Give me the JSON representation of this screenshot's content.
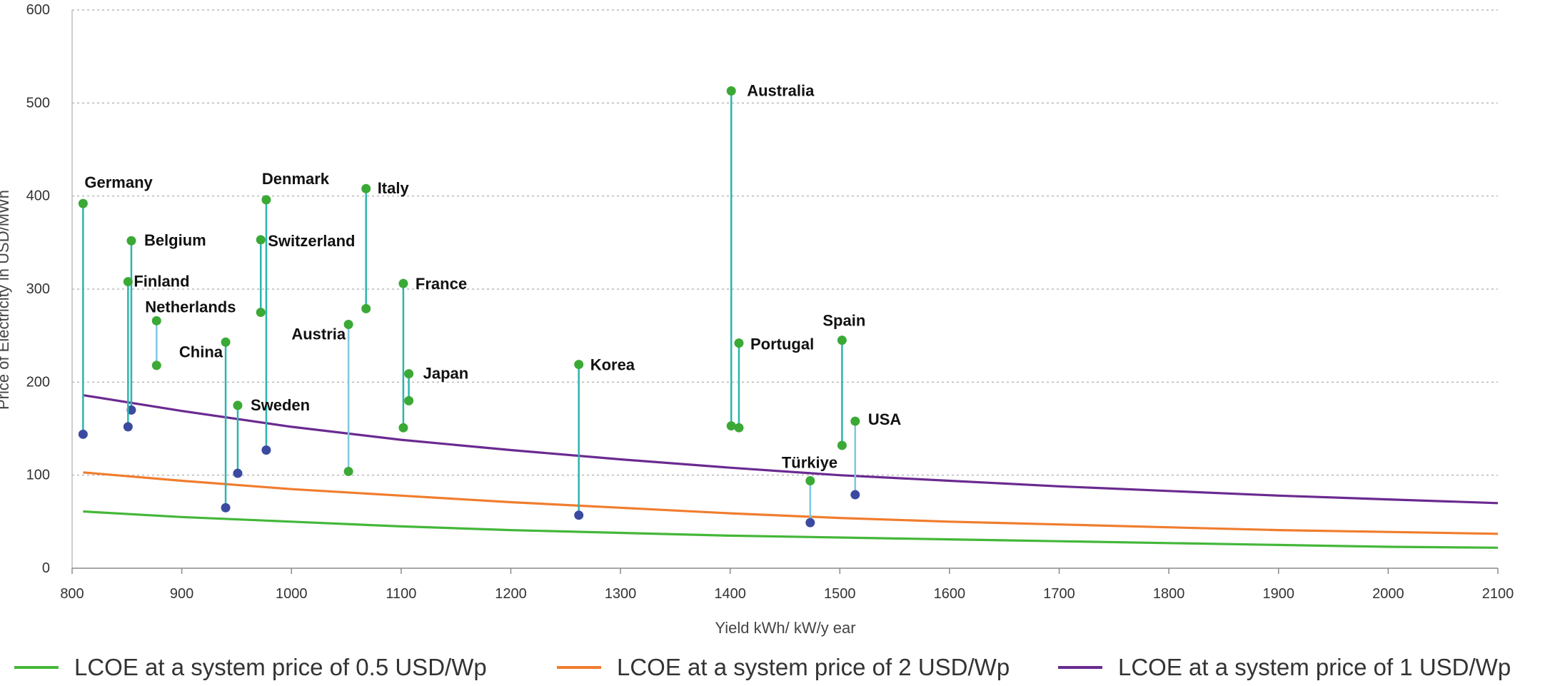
{
  "chart_data": {
    "type": "scatter",
    "title": "",
    "xlabel": "Yield kWh/ kW/y ear",
    "ylabel": "Price of Electricity in USD/MWh",
    "xlim": [
      800,
      2100
    ],
    "ylim": [
      0,
      600
    ],
    "x_ticks": [
      "800",
      "900",
      "1000",
      "1100",
      "1200",
      "1300",
      "1400",
      "1500",
      "1600",
      "1700",
      "1800",
      "1900",
      "2000",
      "2100"
    ],
    "y_ticks": [
      "0",
      "100",
      "200",
      "300",
      "400",
      "500",
      "600"
    ],
    "grid": "horizontal dashed",
    "legend_position": "bottom",
    "colors": {
      "high_point": "#3aa935",
      "low_point": "#3b4aa0",
      "range_line": "#2bb5b0",
      "range_line_light": "#7ec8e3"
    },
    "series": [
      {
        "name": "LCOE at a system price of 0.5 USD/Wp",
        "color": "#44b73a",
        "x": [
          810,
          900,
          1000,
          1100,
          1200,
          1300,
          1400,
          1500,
          1600,
          1700,
          1800,
          1900,
          2000,
          2100
        ],
        "y": [
          61,
          55,
          50,
          45,
          41,
          38,
          35,
          33,
          31,
          29,
          27,
          25,
          23,
          22
        ]
      },
      {
        "name": "LCOE at a system price of 2 USD/Wp",
        "color": "#f07d2e",
        "x": [
          810,
          900,
          1000,
          1100,
          1200,
          1300,
          1400,
          1500,
          1600,
          1700,
          1800,
          1900,
          2000,
          2100
        ],
        "y": [
          103,
          94,
          85,
          78,
          71,
          65,
          59,
          54,
          50,
          47,
          44,
          41,
          39,
          37
        ]
      },
      {
        "name": "LCOE at a system price of 1 USD/Wp",
        "color": "#6a2a90",
        "x": [
          810,
          900,
          1000,
          1100,
          1200,
          1300,
          1400,
          1500,
          1600,
          1700,
          1800,
          1900,
          2000,
          2100
        ],
        "y": [
          186,
          169,
          152,
          138,
          127,
          117,
          108,
          100,
          94,
          88,
          83,
          78,
          74,
          70
        ]
      }
    ],
    "countries": [
      {
        "name": "Germany",
        "x": 810,
        "high": 392,
        "low": 144,
        "low_color": "blue",
        "line": "teal"
      },
      {
        "name": "Belgium",
        "x": 854,
        "high": 352,
        "low": 170,
        "low_color": "blue",
        "line": "teal"
      },
      {
        "name": "Finland",
        "x": 851,
        "high": 308,
        "low": 152,
        "low_color": "blue",
        "line": "teal"
      },
      {
        "name": "Netherlands",
        "x": 877,
        "high": 266,
        "low": 218,
        "low_color": "green",
        "line": "light"
      },
      {
        "name": "China",
        "x": 940,
        "high": 243,
        "low": 65,
        "low_color": "blue",
        "line": "teal"
      },
      {
        "name": "Sweden",
        "x": 951,
        "high": 175,
        "low": 102,
        "low_color": "blue",
        "line": "teal"
      },
      {
        "name": "Denmark",
        "x": 977,
        "high": 396,
        "low": 127,
        "low_color": "blue",
        "line": "teal"
      },
      {
        "name": "Switzerland",
        "x": 972,
        "high": 353,
        "low": 275,
        "low_color": "green",
        "line": "teal"
      },
      {
        "name": "Austria",
        "x": 1052,
        "high": 262,
        "low": 104,
        "low_color": "green",
        "line": "light"
      },
      {
        "name": "Italy",
        "x": 1068,
        "high": 408,
        "low": 279,
        "low_color": "green",
        "line": "teal"
      },
      {
        "name": "France",
        "x": 1102,
        "high": 306,
        "low": 151,
        "low_color": "green",
        "line": "teal"
      },
      {
        "name": "Japan",
        "x": 1107,
        "high": 209,
        "low": 180,
        "low_color": "green",
        "line": "teal"
      },
      {
        "name": "Korea",
        "x": 1262,
        "high": 219,
        "low": 57,
        "low_color": "blue",
        "line": "teal"
      },
      {
        "name": "Australia",
        "x": 1401,
        "high": 513,
        "low": 153,
        "low_color": "green",
        "line": "teal"
      },
      {
        "name": "Portugal",
        "x": 1408,
        "high": 242,
        "low": 151,
        "low_color": "green",
        "line": "teal"
      },
      {
        "name": "Türkiye",
        "x": 1473,
        "high": 94,
        "low": 49,
        "low_color": "blue",
        "line": "light"
      },
      {
        "name": "Spain",
        "x": 1502,
        "high": 245,
        "low": 132,
        "low_color": "green",
        "line": "teal"
      },
      {
        "name": "USA",
        "x": 1514,
        "high": 158,
        "low": 79,
        "low_color": "blue",
        "line": "light"
      }
    ]
  },
  "legend": [
    {
      "label": "LCOE at a system price of 0.5 USD/Wp",
      "color": "#44b73a"
    },
    {
      "label": "LCOE at a system price of 2 USD/Wp",
      "color": "#f07d2e"
    },
    {
      "label": "LCOE at a system price of 1 USD/Wp",
      "color": "#6a2a90"
    }
  ]
}
